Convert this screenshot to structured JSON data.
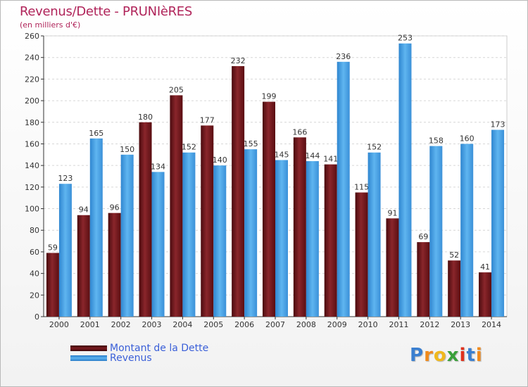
{
  "title": "Revenus/Dette - PRUNIèRES",
  "subtitle": "(en milliers d'€)",
  "chart_data": {
    "type": "bar",
    "title": "Revenus/Dette - PRUNIèRES",
    "ylabel": "(en milliers d'€)",
    "xlabel": "",
    "categories": [
      "2000",
      "2001",
      "2002",
      "2003",
      "2004",
      "2005",
      "2006",
      "2007",
      "2008",
      "2009",
      "2010",
      "2011",
      "2012",
      "2013",
      "2014"
    ],
    "series": [
      {
        "name": "Montant de la Dette",
        "color": "#7a1a1f",
        "values": [
          59,
          94,
          96,
          180,
          205,
          177,
          232,
          199,
          166,
          141,
          115,
          91,
          69,
          52,
          41
        ]
      },
      {
        "name": "Revenus",
        "color": "#4da6e8",
        "values": [
          123,
          165,
          150,
          134,
          152,
          140,
          155,
          145,
          144,
          236,
          152,
          253,
          158,
          160,
          173
        ]
      }
    ],
    "ylim": [
      0,
      260
    ],
    "yticks": [
      0,
      20,
      40,
      60,
      80,
      100,
      120,
      140,
      160,
      180,
      200,
      220,
      240,
      260
    ],
    "grid": true,
    "legend": "bottom-left"
  },
  "legend": {
    "debt_label": "Montant de la Dette",
    "revenue_label": "Revenus"
  },
  "logo": {
    "letters": [
      "P",
      "r",
      "o",
      "x",
      "i",
      "t",
      "i"
    ],
    "colors": [
      "#3a7fd0",
      "#f08a1c",
      "#f0b81c",
      "#3aa03a",
      "#e0301c",
      "#3a7fd0",
      "#f08a1c"
    ]
  }
}
